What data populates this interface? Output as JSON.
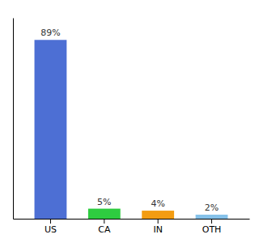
{
  "chart_data": {
    "type": "bar",
    "categories": [
      "US",
      "CA",
      "IN",
      "OTH"
    ],
    "values": [
      89,
      5,
      4,
      2
    ],
    "value_labels": [
      "89%",
      "5%",
      "4%",
      "2%"
    ],
    "colors": [
      "#4d6fd4",
      "#2ecc40",
      "#f39c12",
      "#85c1e9"
    ],
    "ylim": [
      0,
      100
    ],
    "data_labels": true,
    "grid": false,
    "tick_labels": "x"
  }
}
